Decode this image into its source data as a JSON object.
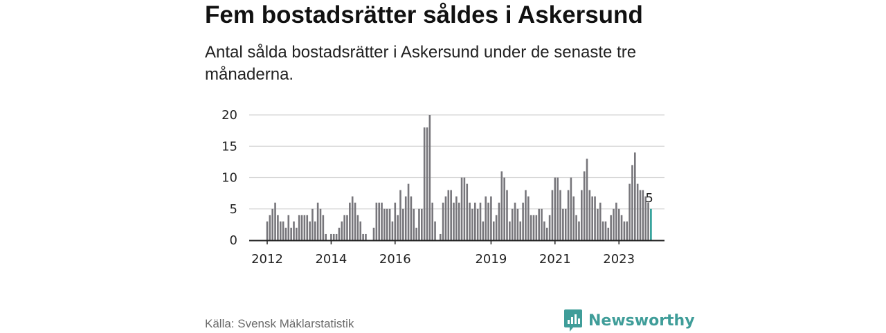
{
  "title": "Fem bostadsrätter såldes i Askersund",
  "subtitle": "Antal sålda bostadsrätter i Askersund under de senaste tre månaderna.",
  "source": "Källa: Svensk Mäklarstatistik",
  "brand": {
    "name": "Newsworthy",
    "icon": "newsworthy-logo-icon",
    "color": "#3f9d99"
  },
  "chart_data": {
    "type": "bar",
    "title": "Fem bostadsrätter såldes i Askersund",
    "subtitle": "Antal sålda bostadsrätter i Askersund under de senaste tre månaderna.",
    "xlabel": "",
    "ylabel": "",
    "ylim": [
      0,
      20
    ],
    "yticks": [
      0,
      5,
      10,
      15,
      20
    ],
    "xtick_labels": [
      {
        "label": "2012",
        "index": 0
      },
      {
        "label": "2014",
        "index": 24
      },
      {
        "label": "2016",
        "index": 48
      },
      {
        "label": "2019",
        "index": 84
      },
      {
        "label": "2021",
        "index": 108
      },
      {
        "label": "2023",
        "index": 132
      }
    ],
    "grid": "horizontal",
    "start_month": "2012-01",
    "bar_color": "#77767b",
    "highlight_color": "#2a9d96",
    "highlight_label": "5",
    "values": [
      3,
      4,
      5,
      6,
      4,
      3,
      3,
      2,
      4,
      2,
      3,
      2,
      4,
      4,
      4,
      4,
      3,
      5,
      3,
      6,
      5,
      4,
      1,
      0,
      1,
      1,
      1,
      2,
      3,
      4,
      4,
      6,
      7,
      6,
      4,
      3,
      1,
      1,
      0,
      0,
      2,
      6,
      6,
      6,
      5,
      5,
      5,
      3,
      6,
      4,
      8,
      5,
      7,
      9,
      7,
      5,
      2,
      5,
      5,
      18,
      18,
      20,
      6,
      3,
      0,
      1,
      6,
      7,
      8,
      8,
      6,
      7,
      6,
      10,
      10,
      9,
      6,
      5,
      6,
      5,
      6,
      3,
      7,
      6,
      7,
      3,
      4,
      6,
      11,
      10,
      8,
      3,
      5,
      6,
      5,
      3,
      6,
      8,
      7,
      4,
      4,
      4,
      5,
      5,
      3,
      2,
      4,
      8,
      10,
      10,
      8,
      5,
      5,
      8,
      10,
      7,
      4,
      3,
      8,
      11,
      13,
      8,
      7,
      7,
      5,
      6,
      3,
      3,
      2,
      4,
      5,
      6,
      5,
      4,
      3,
      3,
      9,
      12,
      14,
      9,
      8,
      8,
      7,
      6,
      5
    ]
  }
}
